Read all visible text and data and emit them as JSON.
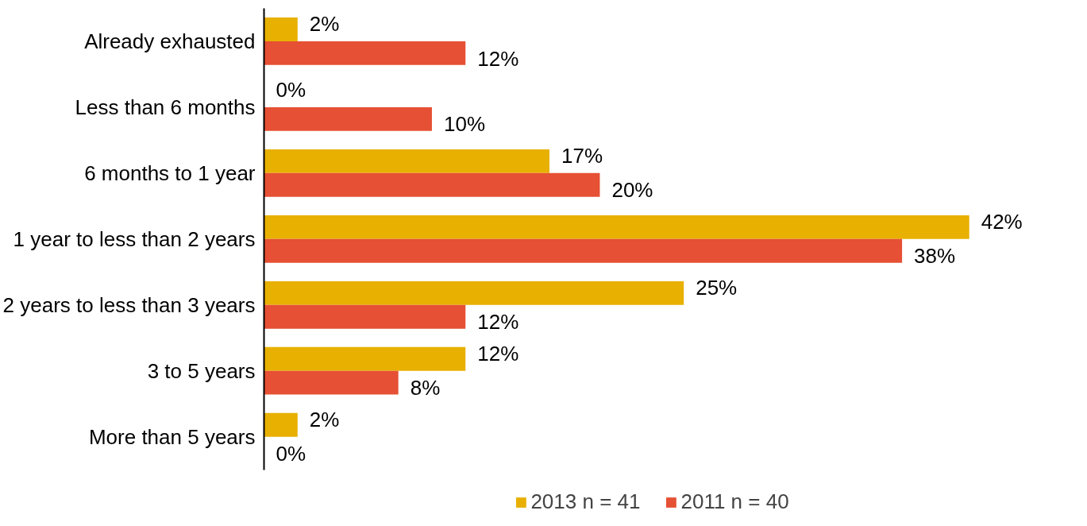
{
  "chart_data": {
    "type": "bar",
    "orientation": "horizontal",
    "categories": [
      "Already exhausted",
      "Less than 6 months",
      "6 months to 1 year",
      "1 year to less than 2 years",
      "2 years to less than 3 years",
      "3 to 5 years",
      "More than 5 years"
    ],
    "series": [
      {
        "name": "2013 n = 41",
        "color": "#e8b000",
        "values": [
          2,
          0,
          17,
          42,
          25,
          12,
          2
        ],
        "value_labels": [
          "2%",
          "0%",
          "17%",
          "42%",
          "25%",
          "12%",
          "2%"
        ]
      },
      {
        "name": "2011 n = 40",
        "color": "#e65034",
        "values": [
          12,
          10,
          20,
          38,
          12,
          8,
          0
        ],
        "value_labels": [
          "12%",
          "10%",
          "20%",
          "38%",
          "12%",
          "8%",
          "0%"
        ]
      }
    ],
    "legend": "bottom",
    "tick_labels": "y",
    "grid": false
  }
}
